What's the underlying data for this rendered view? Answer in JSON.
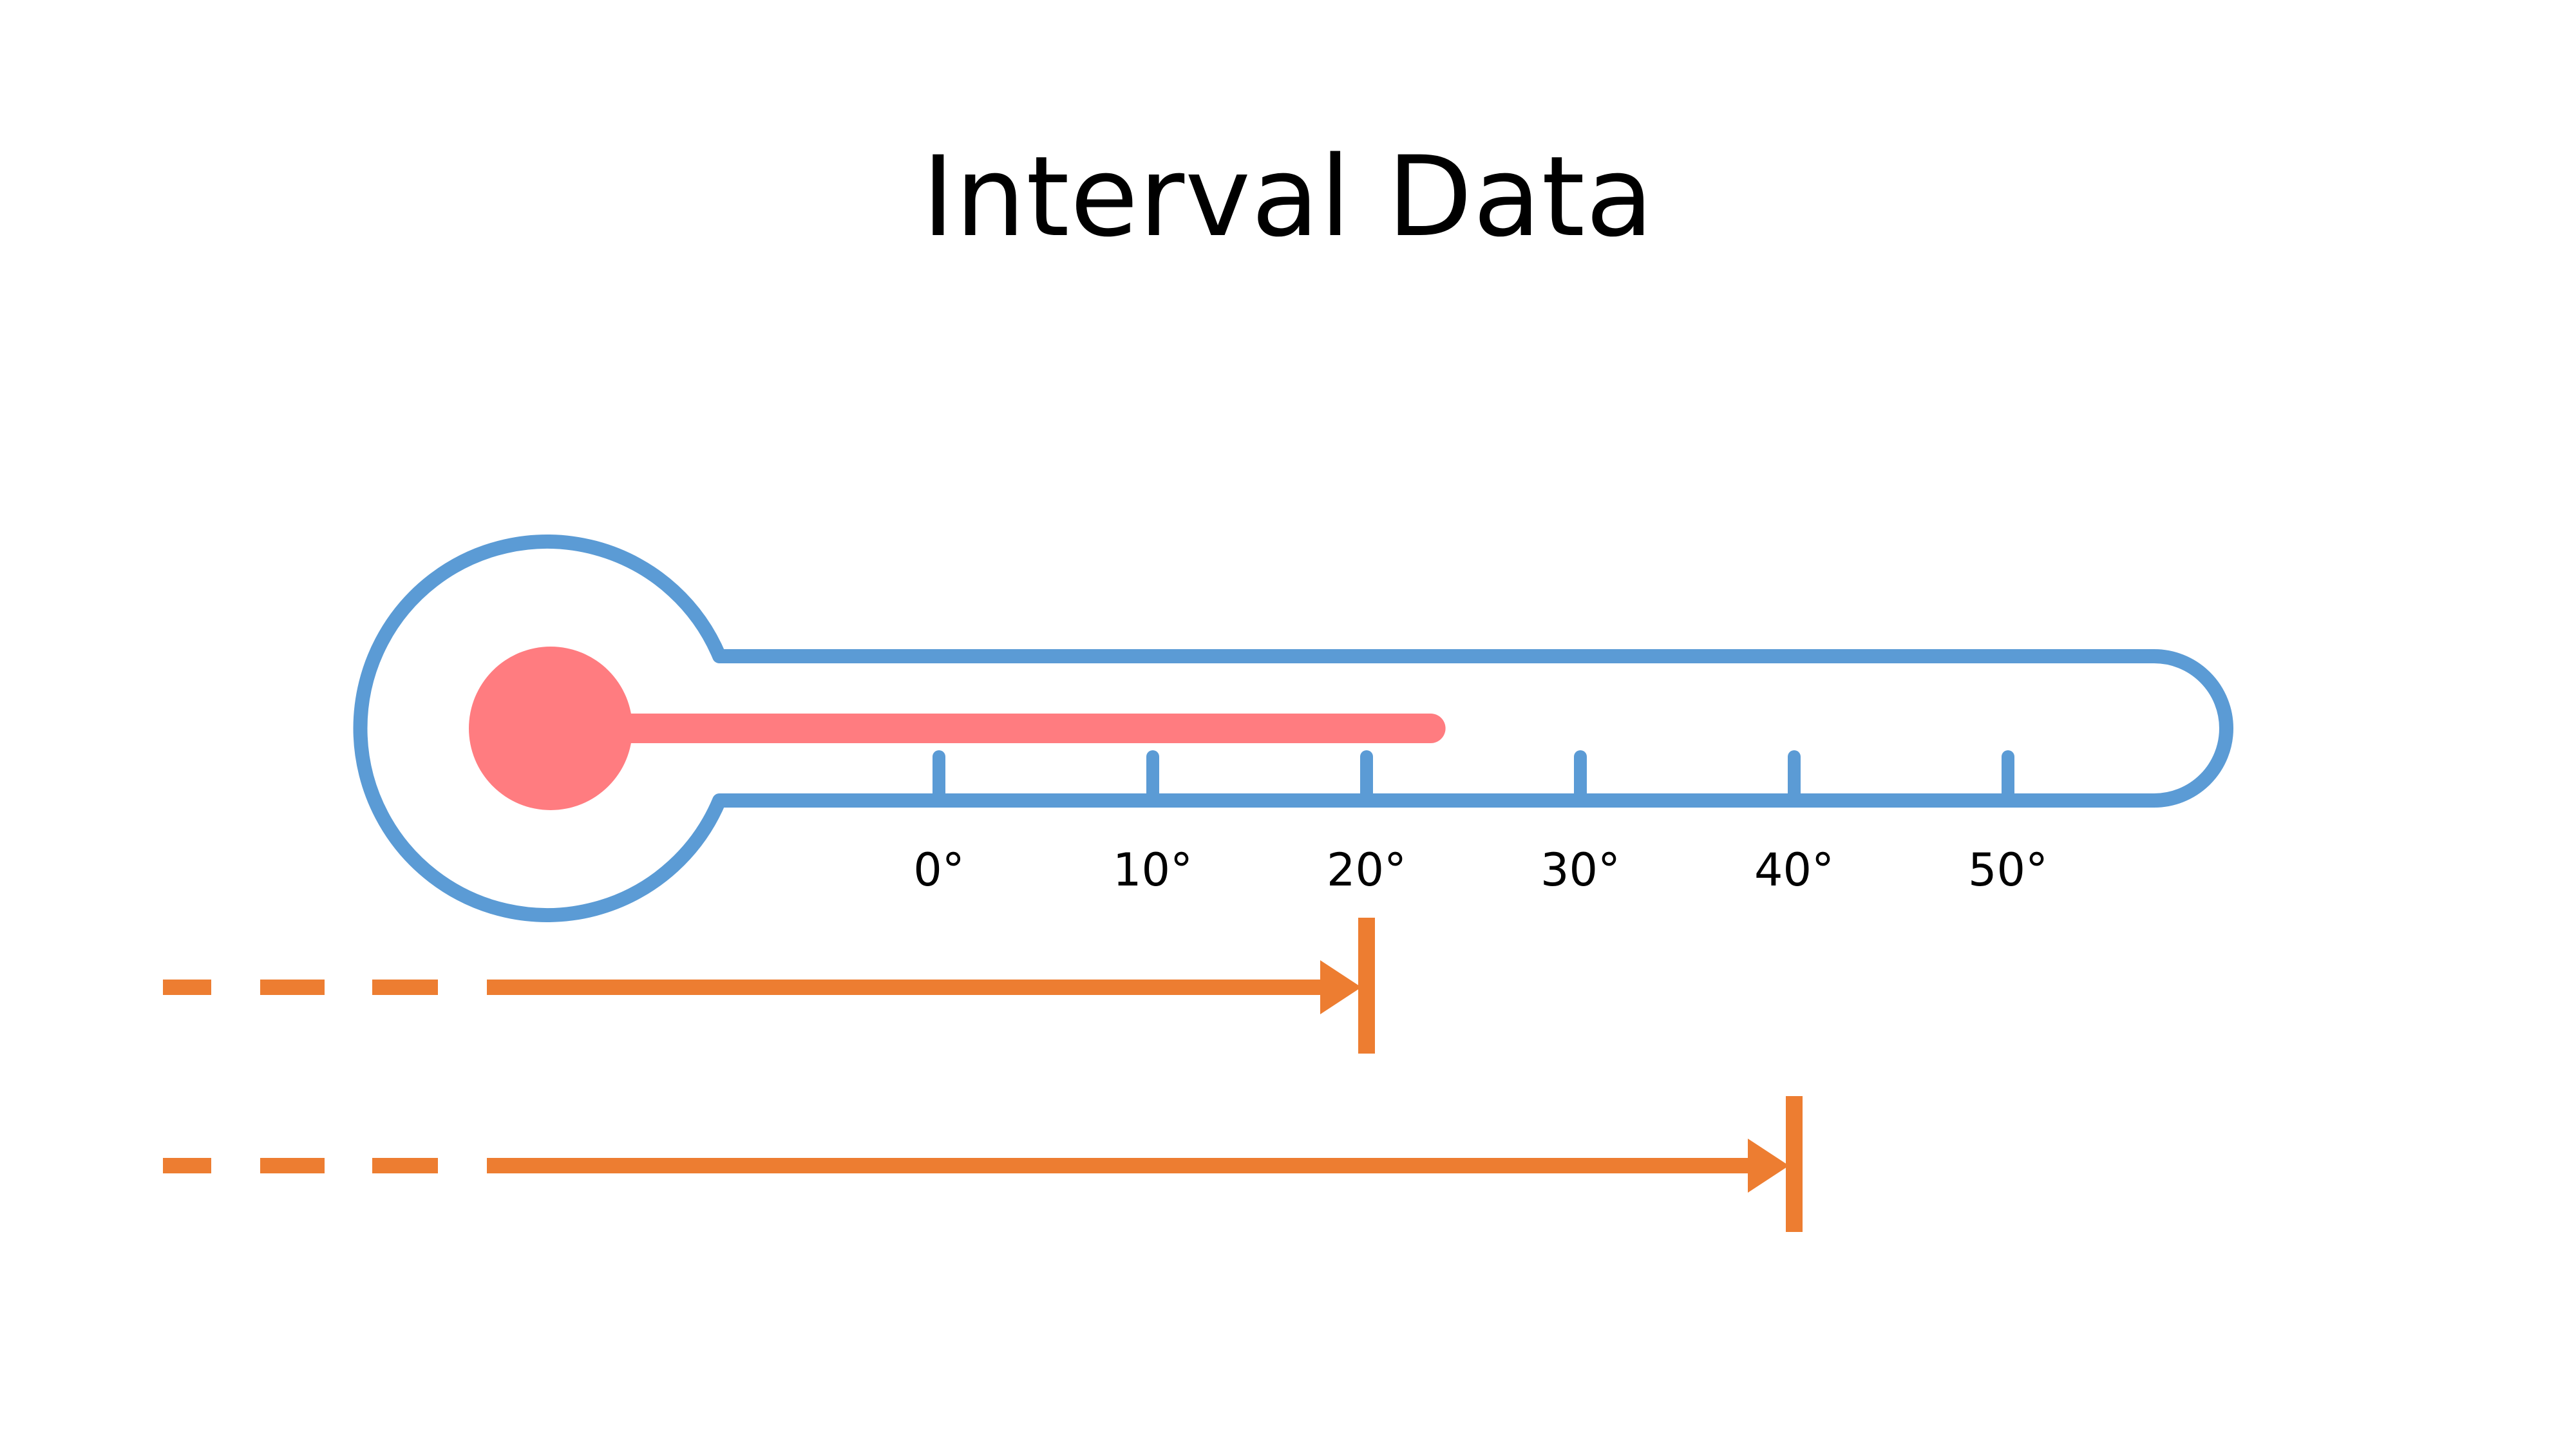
{
  "title": "Interval Data",
  "thermometer": {
    "ticks": [
      {
        "value": 0,
        "label": "0°"
      },
      {
        "value": 10,
        "label": "10°"
      },
      {
        "value": 20,
        "label": "20°"
      },
      {
        "value": 30,
        "label": "30°"
      },
      {
        "value": 40,
        "label": "40°"
      },
      {
        "value": 50,
        "label": "50°"
      }
    ],
    "reading": 23
  },
  "arrows": [
    {
      "end_value": 20
    },
    {
      "end_value": 40
    }
  ],
  "colors": {
    "outline": "#5B9BD5",
    "mercury": "#FF7C80",
    "arrow": "#ED7D31",
    "text": "#000000"
  }
}
